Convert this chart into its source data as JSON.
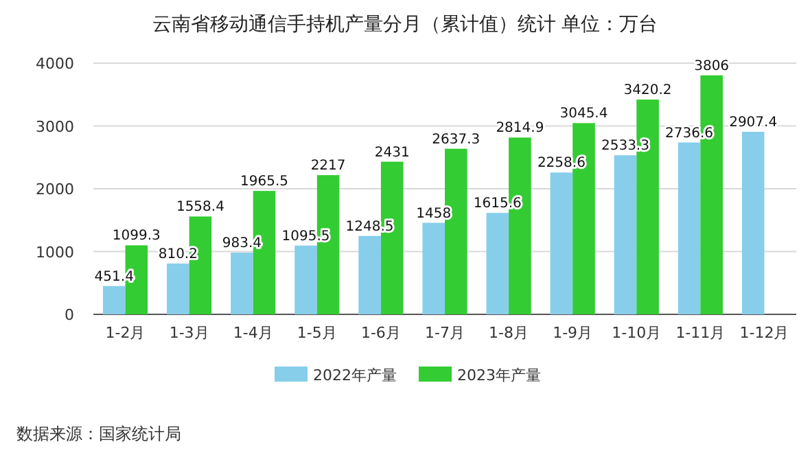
{
  "chart_data": {
    "type": "bar",
    "title": "云南省移动通信手持机产量分月（累计值）统计  单位：万台",
    "categories": [
      "1-2月",
      "1-3月",
      "1-4月",
      "1-5月",
      "1-6月",
      "1-7月",
      "1-8月",
      "1-9月",
      "1-10月",
      "1-11月",
      "1-12月"
    ],
    "series": [
      {
        "name": "2022年产量",
        "color": "#87ceeb",
        "values": [
          451.4,
          810.2,
          983.4,
          1095.5,
          1248.5,
          1458,
          1615.6,
          2258.6,
          2533.3,
          2736.6,
          2907.4
        ]
      },
      {
        "name": "2023年产量",
        "color": "#33cc33",
        "values": [
          1099.3,
          1558.4,
          1965.5,
          2217,
          2431,
          2637.3,
          2814.9,
          3045.4,
          3420.2,
          3806,
          null
        ]
      }
    ],
    "ylim": [
      0,
      4000
    ],
    "yticks": [
      0,
      1000,
      2000,
      3000,
      4000
    ],
    "grid": "y",
    "legend": "bottom",
    "data_labels": true,
    "annotations": [
      "数据来源：国家统计局"
    ]
  }
}
